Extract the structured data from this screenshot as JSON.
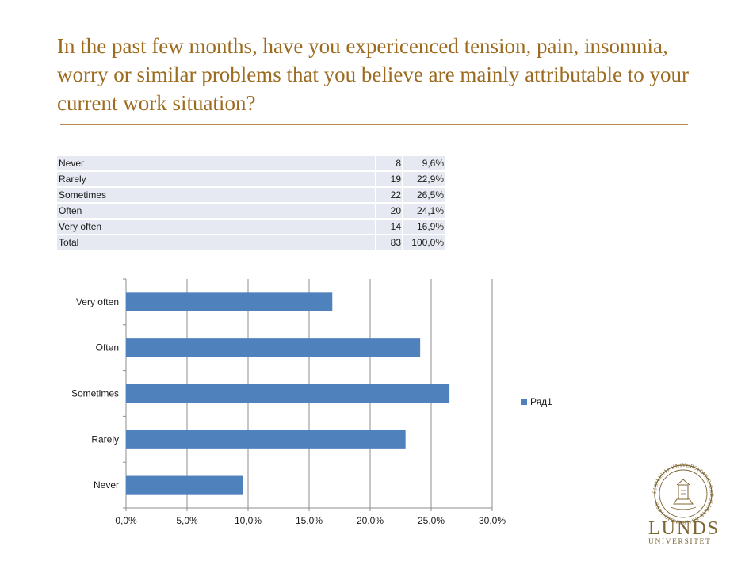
{
  "title": "In the past few months, have you expericenced tension, pain, insomnia, worry or similar problems that you believe are mainly attributable to your current work situation?",
  "table": {
    "rows": [
      {
        "label": "Never",
        "count": "8",
        "percent": "9,6%"
      },
      {
        "label": "Rarely",
        "count": "19",
        "percent": "22,9%"
      },
      {
        "label": "Sometimes",
        "count": "22",
        "percent": "26,5%"
      },
      {
        "label": "Often",
        "count": "20",
        "percent": "24,1%"
      },
      {
        "label": "Very often",
        "count": "14",
        "percent": "16,9%"
      },
      {
        "label": "Total",
        "count": "83",
        "percent": "100,0%"
      }
    ]
  },
  "chart_data": {
    "type": "bar",
    "orientation": "horizontal",
    "categories": [
      "Never",
      "Rarely",
      "Sometimes",
      "Often",
      "Very often"
    ],
    "series": [
      {
        "name": "Ряд1",
        "values": [
          9.6,
          22.9,
          26.5,
          24.1,
          16.9
        ],
        "color": "#4f81bd"
      }
    ],
    "xlim": [
      0,
      30
    ],
    "xticks": [
      0,
      5,
      10,
      15,
      20,
      25,
      30
    ],
    "xtick_labels": [
      "0,0%",
      "5,0%",
      "10,0%",
      "15,0%",
      "20,0%",
      "25,0%",
      "30,0%"
    ],
    "grid": true,
    "legend": "right"
  },
  "colors": {
    "title": "#9c6b1f",
    "bar": "#4f81bd",
    "table_bg": "#e6e9f1",
    "logo": "#7d6432"
  },
  "logo": {
    "name": "LUNDS",
    "sub": "UNIVERSITET",
    "seal_text": "SIGILLUM UNIVERSITATIS CAROLINAE LUNDENSIS 1666",
    "icon": "university-seal-icon"
  }
}
